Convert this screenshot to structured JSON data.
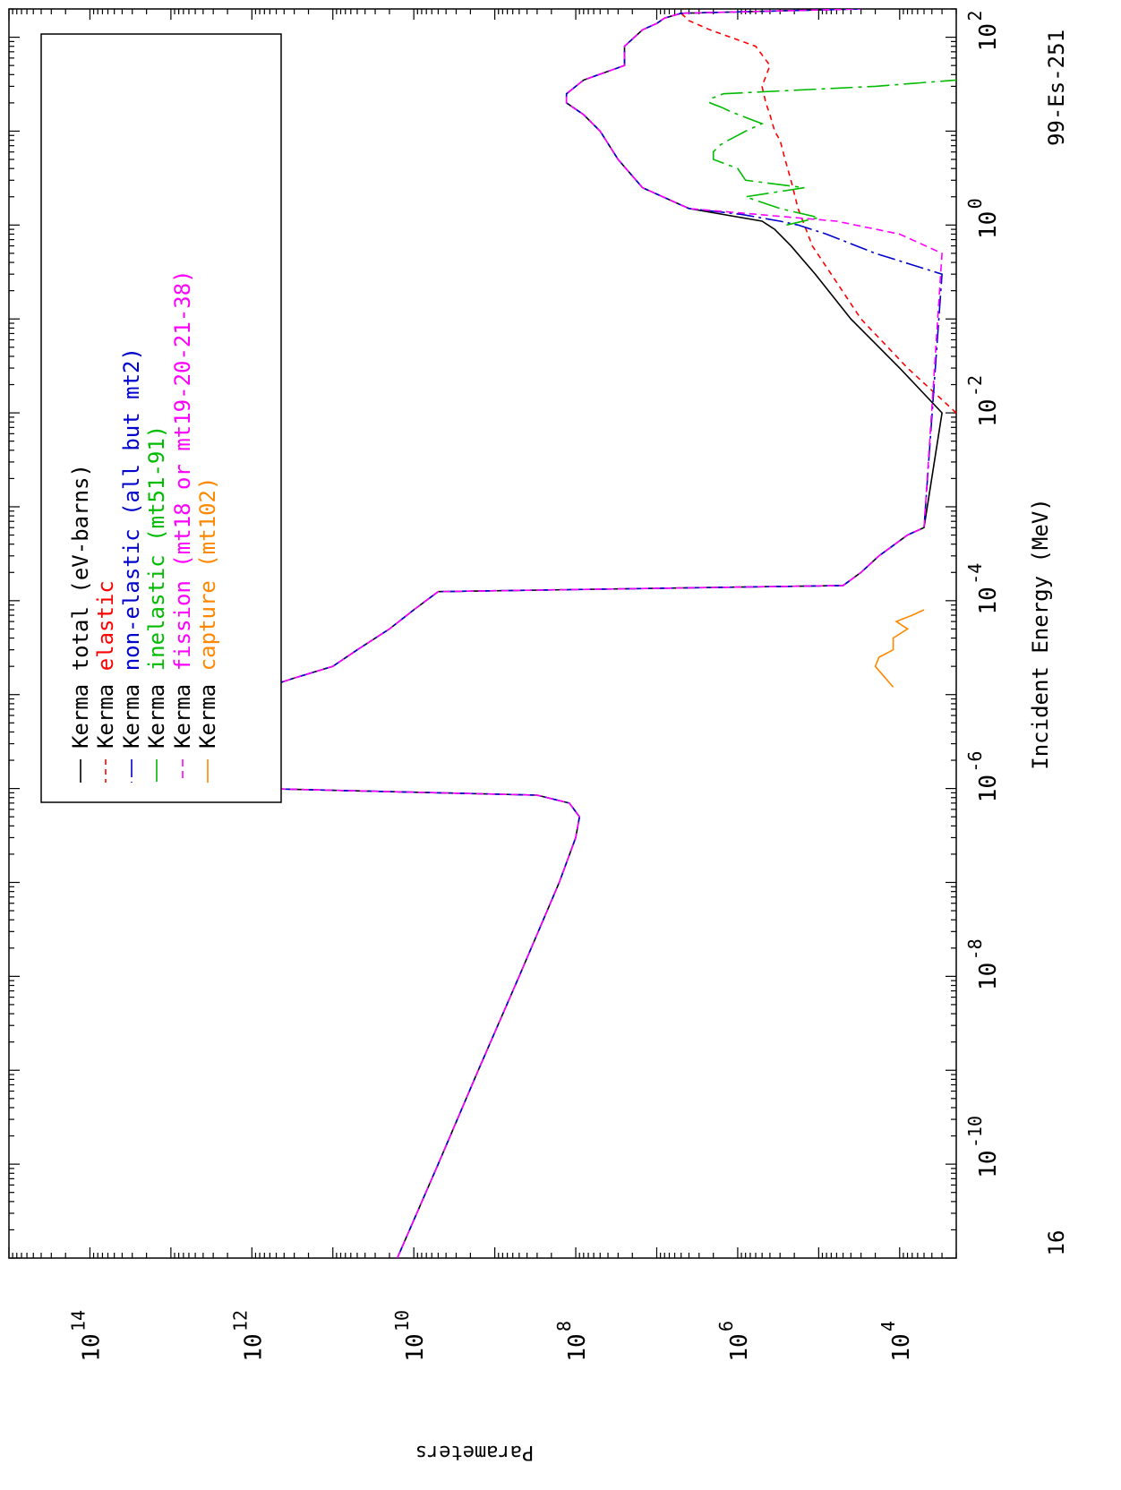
{
  "chart_data": {
    "type": "line",
    "title": "",
    "xlabel": "Incident Energy (MeV)",
    "ylabel": "Parameters",
    "x_scale": "log",
    "y_scale": "log",
    "xlim": [
      1e-11,
      200
    ],
    "ylim": [
      2000,
      1000000000000000.0
    ],
    "corner_label_left": "16",
    "corner_label_right": "99-Es-251",
    "x_ticks": [
      {
        "value": 1e-10,
        "base": "10",
        "exp": "-10"
      },
      {
        "value": 1e-08,
        "base": "10",
        "exp": "-8"
      },
      {
        "value": 1e-06,
        "base": "10",
        "exp": "-6"
      },
      {
        "value": 0.0001,
        "base": "10",
        "exp": "-4"
      },
      {
        "value": 0.01,
        "base": "10",
        "exp": "-2"
      },
      {
        "value": 1,
        "base": "10",
        "exp": "0"
      },
      {
        "value": 100,
        "base": "10",
        "exp": "2"
      }
    ],
    "y_ticks": [
      {
        "value": 10000.0,
        "base": "10",
        "exp": "4"
      },
      {
        "value": 1000000.0,
        "base": "10",
        "exp": "6"
      },
      {
        "value": 100000000.0,
        "base": "10",
        "exp": "8"
      },
      {
        "value": 10000000000.0,
        "base": "10",
        "exp": "10"
      },
      {
        "value": 1000000000000.0,
        "base": "10",
        "exp": "12"
      },
      {
        "value": 100000000000000.0,
        "base": "10",
        "exp": "14"
      }
    ],
    "grid": false,
    "legend_position": "top-left",
    "legend_header_suffix": "(eV-barns)",
    "series": [
      {
        "name": "Kerma total",
        "color": "#000000",
        "dash": "solid",
        "x": [
          1e-11,
          1e-10,
          1e-09,
          1e-08,
          1e-07,
          3e-07,
          5e-07,
          7e-07,
          8.5e-07,
          1e-06,
          1.2e-05,
          1.3e-05,
          1.5e-05,
          2e-05,
          3e-05,
          5e-05,
          8e-05,
          0.000125,
          0.000145,
          0.0002,
          0.0003,
          0.0005,
          0.0006,
          0.01,
          0.03,
          0.1,
          0.3,
          0.6,
          0.9,
          1.1,
          1.5,
          2.5,
          5,
          10,
          15,
          20,
          25,
          35,
          50,
          80,
          120,
          140,
          160,
          180,
          200
        ],
        "y": [
          16000000000.0,
          5000000000.0,
          1600000000.0,
          500000000.0,
          160000000.0,
          100000000.0,
          90000000.0,
          120000000.0,
          300000000.0,
          800000000000.0,
          800000000000.0,
          500000000000.0,
          300000000000.0,
          100000000000.0,
          50000000000.0,
          20000000000.0,
          10000000000.0,
          5000000000.0,
          50000.0,
          30000.0,
          18000.0,
          8000.0,
          5000.0,
          3000.0,
          10000.0,
          40000.0,
          110000.0,
          220000.0,
          350000.0,
          500000.0,
          4000000.0,
          15000000.0,
          30000000.0,
          50000000.0,
          80000000.0,
          130000000.0,
          130000000.0,
          80000000.0,
          25000000.0,
          25000000.0,
          15000000.0,
          10000000.0,
          8000000.0,
          5000000.0,
          34000.0
        ]
      },
      {
        "name": "Kerma elastic",
        "color": "#ff0000",
        "dash": "6,5",
        "x": [
          0.01,
          0.03,
          0.1,
          0.3,
          0.6,
          1,
          1.5,
          3,
          5,
          8,
          10,
          15,
          20,
          30,
          50,
          80,
          120,
          150,
          180,
          200
        ],
        "y": [
          2000.0,
          8000.0,
          30000.0,
          70000.0,
          120000.0,
          150000.0,
          180000.0,
          220000.0,
          260000.0,
          300000.0,
          350000.0,
          400000.0,
          450000.0,
          500000.0,
          400000.0,
          600000.0,
          2200000.0,
          4000000.0,
          5000000.0,
          5000000.0
        ]
      },
      {
        "name": "Kerma non-elastic (all but mt2)",
        "color": "#0000cc",
        "dash": "20,5,3,5",
        "x": [
          1e-11,
          1e-10,
          1e-09,
          1e-08,
          1e-07,
          3e-07,
          5e-07,
          7e-07,
          8.5e-07,
          1e-06,
          1.2e-05,
          1.3e-05,
          1.5e-05,
          2e-05,
          3e-05,
          5e-05,
          8e-05,
          0.000125,
          0.000145,
          0.0002,
          0.0003,
          0.0005,
          0.0006,
          0.3,
          0.5,
          0.8,
          1.0,
          1.1,
          1.3,
          1.5,
          2.5,
          5,
          10,
          15,
          20,
          25,
          35,
          50,
          80,
          120,
          140,
          160,
          180,
          200
        ],
        "y": [
          16000000000.0,
          5000000000.0,
          1600000000.0,
          500000000.0,
          160000000.0,
          100000000.0,
          90000000.0,
          120000000.0,
          300000000.0,
          800000000000.0,
          800000000000.0,
          500000000000.0,
          300000000000.0,
          100000000000.0,
          50000000000.0,
          20000000000.0,
          10000000000.0,
          5000000000.0,
          50000.0,
          30000.0,
          18000.0,
          8000.0,
          5000.0,
          3000.0,
          20000.0,
          80000.0,
          180000.0,
          300000.0,
          900000.0,
          4000000.0,
          15000000.0,
          30000000.0,
          50000000.0,
          80000000.0,
          130000000.0,
          130000000.0,
          80000000.0,
          25000000.0,
          25000000.0,
          15000000.0,
          10000000.0,
          8000000.0,
          5000000.0,
          30000.0
        ]
      },
      {
        "name": "Kerma inelastic (mt51-91)",
        "color": "#00bb00",
        "dash": "25,6,4,6",
        "x": [
          1.0,
          1.2,
          1.5,
          2.0,
          2.5,
          3,
          4,
          5,
          6,
          7,
          8,
          9,
          10,
          12,
          14,
          16,
          18,
          20,
          22,
          25,
          30,
          35
        ],
        "y": [
          250000.0,
          100000.0,
          300000.0,
          800000.0,
          150000.0,
          800000.0,
          1000000.0,
          2000000.0,
          2000000.0,
          1700000.0,
          1300000.0,
          1000000.0,
          800000.0,
          500000.0,
          800000.0,
          1200000.0,
          1600000.0,
          2200000.0,
          2200000.0,
          1500000.0,
          20000.0,
          2000.0
        ]
      },
      {
        "name": "Kerma fission (mt18 or mt19-20-21-38)",
        "color": "#ff00ff",
        "dash": "8,5",
        "x": [
          1e-11,
          1e-10,
          1e-09,
          1e-08,
          1e-07,
          3e-07,
          5e-07,
          7e-07,
          8.5e-07,
          1e-06,
          1.2e-05,
          1.3e-05,
          1.5e-05,
          2e-05,
          3e-05,
          5e-05,
          8e-05,
          0.000125,
          0.000145,
          0.0002,
          0.0003,
          0.0005,
          0.0006,
          0.5,
          0.8,
          1.1,
          1.5,
          2.5,
          5,
          10,
          15,
          20,
          25,
          35,
          50,
          80,
          120,
          140,
          160,
          180,
          200
        ],
        "y": [
          16000000000.0,
          5000000000.0,
          1600000000.0,
          500000000.0,
          160000000.0,
          100000000.0,
          90000000.0,
          120000000.0,
          300000000.0,
          800000000000.0,
          800000000000.0,
          500000000000.0,
          300000000000.0,
          100000000000.0,
          50000000000.0,
          20000000000.0,
          10000000000.0,
          5000000000.0,
          50000.0,
          30000.0,
          18000.0,
          8000.0,
          5000.0,
          3000.0,
          10000.0,
          60000.0,
          4000000.0,
          15000000.0,
          30000000.0,
          50000000.0,
          80000000.0,
          130000000.0,
          130000000.0,
          80000000.0,
          25000000.0,
          25000000.0,
          15000000.0,
          10000000.0,
          8000000.0,
          5000000.0,
          30000.0
        ]
      },
      {
        "name": "Kerma capture (mt102)",
        "color": "#ff8800",
        "dash": "solid",
        "x": [
          1.2e-05,
          1.5e-05,
          2e-05,
          2.5e-05,
          3e-05,
          4e-05,
          5e-05,
          6e-05,
          7e-05,
          8e-05
        ],
        "y": [
          12000.0,
          15000.0,
          20000.0,
          18000.0,
          12000.0,
          12000.0,
          8000.0,
          11000.0,
          7000.0,
          5000.0
        ]
      }
    ]
  }
}
